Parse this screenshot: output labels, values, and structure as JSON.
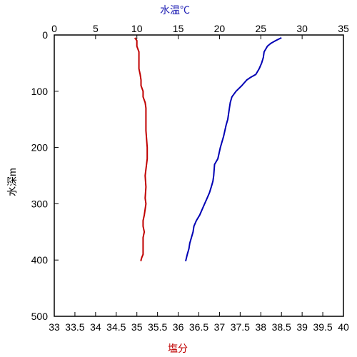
{
  "chart_data": {
    "type": "line",
    "title": "",
    "top_axis": {
      "label": "水温℃",
      "range": [
        0,
        35
      ],
      "ticks": [
        "0",
        "5",
        "10",
        "15",
        "20",
        "25",
        "30",
        "35"
      ],
      "label_color": "#1f1fb4"
    },
    "bottom_axis": {
      "label": "塩分",
      "range": [
        33,
        40
      ],
      "ticks": [
        "33",
        "33.5",
        "34",
        "34.5",
        "35",
        "35.5",
        "36",
        "36.5",
        "37",
        "37.5",
        "38",
        "38.5",
        "39",
        "39.5",
        "40"
      ],
      "label_color": "#c00000"
    },
    "left_axis": {
      "label": "水深m",
      "range": [
        0,
        500
      ],
      "inverted": true,
      "ticks": [
        "0",
        "100",
        "200",
        "300",
        "400",
        "500"
      ]
    },
    "grid": false,
    "series": [
      {
        "quantity": "temperature",
        "axis": "top",
        "color": "#0000b4",
        "depth": [
          5,
          10,
          15,
          20,
          25,
          30,
          40,
          50,
          60,
          70,
          75,
          80,
          90,
          100,
          110,
          120,
          130,
          150,
          160,
          180,
          200,
          220,
          230,
          250,
          260,
          270,
          280,
          290,
          300,
          320,
          330,
          340,
          350,
          360,
          370,
          380,
          390,
          402
        ],
        "values": [
          27.5,
          26.8,
          26.2,
          25.8,
          25.6,
          25.4,
          25.3,
          25.1,
          24.8,
          24.4,
          23.8,
          23.3,
          22.7,
          22.0,
          21.5,
          21.3,
          21.2,
          21.0,
          20.8,
          20.5,
          20.1,
          19.8,
          19.4,
          19.3,
          19.2,
          19.0,
          18.8,
          18.5,
          18.2,
          17.6,
          17.2,
          16.9,
          16.8,
          16.6,
          16.4,
          16.3,
          16.1,
          15.9
        ]
      },
      {
        "quantity": "salinity",
        "axis": "bottom",
        "color": "#c00000",
        "depth": [
          5,
          10,
          20,
          30,
          40,
          50,
          60,
          70,
          80,
          90,
          100,
          110,
          120,
          130,
          150,
          170,
          200,
          220,
          250,
          270,
          290,
          300,
          320,
          330,
          340,
          350,
          360,
          370,
          380,
          390,
          395,
          400,
          402
        ],
        "values": [
          34.95,
          35.0,
          35.0,
          35.05,
          35.05,
          35.05,
          35.05,
          35.08,
          35.1,
          35.1,
          35.15,
          35.15,
          35.2,
          35.22,
          35.22,
          35.22,
          35.25,
          35.25,
          35.2,
          35.22,
          35.2,
          35.22,
          35.18,
          35.15,
          35.15,
          35.18,
          35.15,
          35.15,
          35.15,
          35.15,
          35.12,
          35.1,
          35.1
        ]
      }
    ]
  }
}
